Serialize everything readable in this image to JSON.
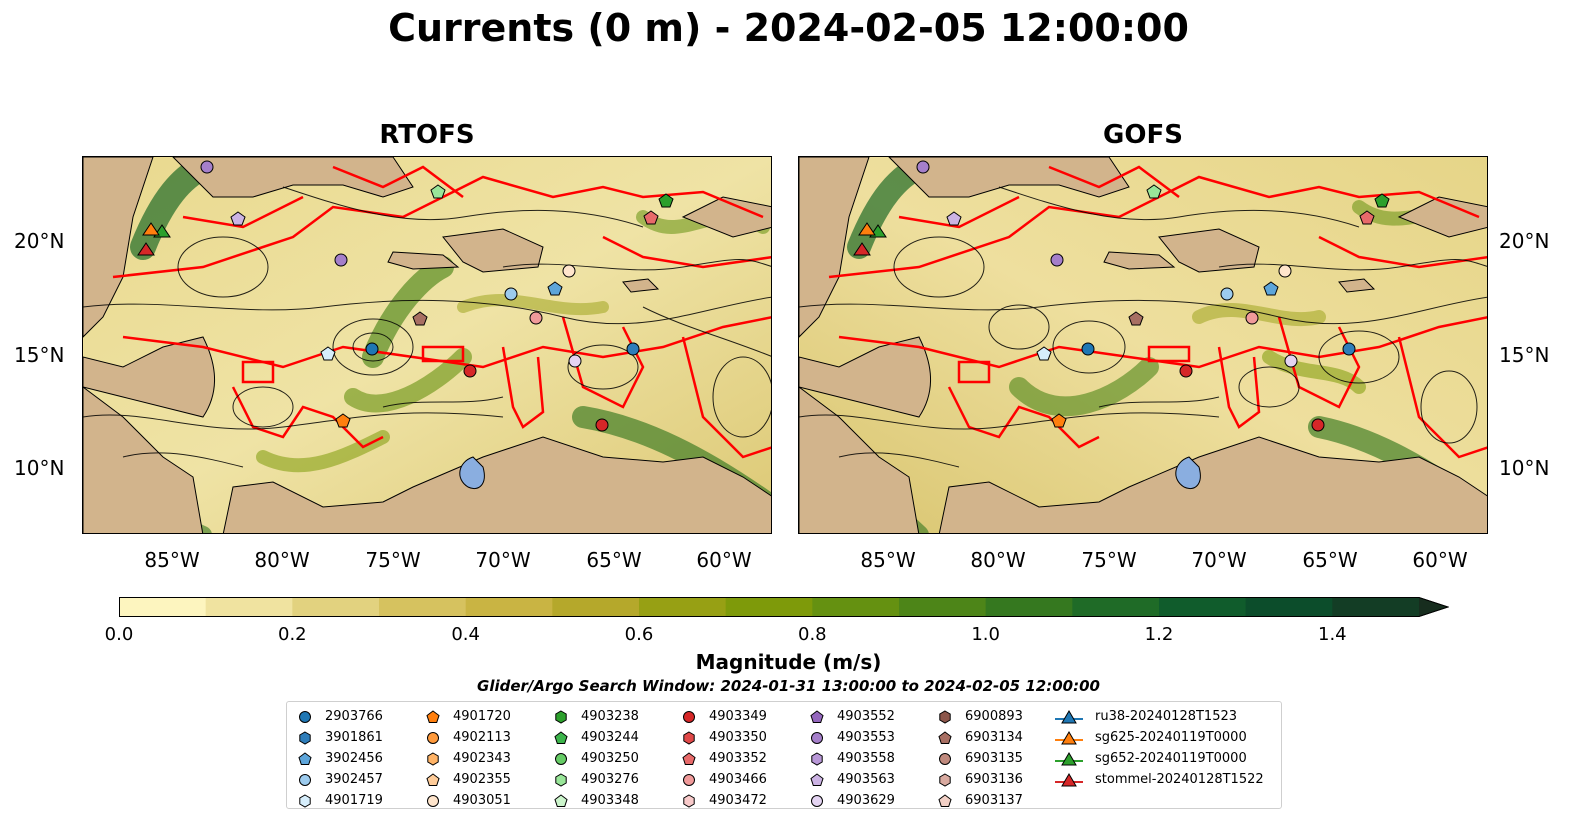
{
  "title": "Currents (0 m) - 2024-02-05 12:00:00",
  "panels": [
    {
      "title": "RTOFS"
    },
    {
      "title": "GOFS"
    }
  ],
  "axes": {
    "lat_labels": [
      "20°N",
      "15°N",
      "10°N"
    ],
    "lon_labels": [
      "85°W",
      "80°W",
      "75°W",
      "70°W",
      "65°W",
      "60°W"
    ]
  },
  "colorbar": {
    "label": "Magnitude (m/s)",
    "ticks": [
      "0.0",
      "0.2",
      "0.4",
      "0.6",
      "0.8",
      "1.0",
      "1.2",
      "1.4"
    ],
    "min": 0.0,
    "max": 1.5,
    "step": 0.1,
    "extend": "max",
    "colors": [
      "#fdf5bf",
      "#f0e3a0",
      "#e2d27f",
      "#d6c25f",
      "#c9b443",
      "#b5a82b",
      "#97a014",
      "#7e9a0a",
      "#659111",
      "#4d8518",
      "#35781f",
      "#1f6b27",
      "#105c2c",
      "#0c4d2b",
      "#133d25",
      "#172d1e"
    ]
  },
  "search_window": "Glider/Argo Search Window: 2024-01-31 13:00:00 to 2024-02-05 12:00:00",
  "colors": {
    "land": "#d2b48c",
    "lake": "#8aaee0",
    "eez_lines": "#ff0000",
    "streamlines": "#000000"
  },
  "legend": {
    "columns": [
      [
        {
          "label": "2903766",
          "marker": "circle",
          "color": "#1f77b4"
        },
        {
          "label": "3901861",
          "marker": "hexagon",
          "color": "#2e7dba"
        },
        {
          "label": "3902456",
          "marker": "pentagon",
          "color": "#5da5da"
        },
        {
          "label": "3902457",
          "marker": "circle",
          "color": "#9ccbee"
        },
        {
          "label": "4901719",
          "marker": "hexagon",
          "color": "#d6eefc"
        }
      ],
      [
        {
          "label": "4901720",
          "marker": "pentagon",
          "color": "#ff7f0e"
        },
        {
          "label": "4902113",
          "marker": "circle",
          "color": "#ff9a3c"
        },
        {
          "label": "4902343",
          "marker": "hexagon",
          "color": "#ffb366"
        },
        {
          "label": "4902355",
          "marker": "pentagon",
          "color": "#ffcc99"
        },
        {
          "label": "4903051",
          "marker": "circle",
          "color": "#ffe5cc"
        }
      ],
      [
        {
          "label": "4903238",
          "marker": "hexagon",
          "color": "#2ca02c"
        },
        {
          "label": "4903244",
          "marker": "pentagon",
          "color": "#3cb44b"
        },
        {
          "label": "4903250",
          "marker": "circle",
          "color": "#66cc66"
        },
        {
          "label": "4903276",
          "marker": "hexagon",
          "color": "#99e699"
        },
        {
          "label": "4903348",
          "marker": "pentagon",
          "color": "#ccf5cc"
        }
      ],
      [
        {
          "label": "4903349",
          "marker": "circle",
          "color": "#d62728"
        },
        {
          "label": "4903350",
          "marker": "hexagon",
          "color": "#e04848"
        },
        {
          "label": "4903352",
          "marker": "pentagon",
          "color": "#e86a6a"
        },
        {
          "label": "4903466",
          "marker": "circle",
          "color": "#f09a9a"
        },
        {
          "label": "4903472",
          "marker": "hexagon",
          "color": "#f8caca"
        }
      ],
      [
        {
          "label": "4903552",
          "marker": "pentagon",
          "color": "#9467bd"
        },
        {
          "label": "4903553",
          "marker": "circle",
          "color": "#a57fca"
        },
        {
          "label": "4903558",
          "marker": "hexagon",
          "color": "#b897d7"
        },
        {
          "label": "4903563",
          "marker": "pentagon",
          "color": "#ccb3e4"
        },
        {
          "label": "4903629",
          "marker": "circle",
          "color": "#e4d4f2"
        }
      ],
      [
        {
          "label": "6900893",
          "marker": "hexagon",
          "color": "#8c564b"
        },
        {
          "label": "6903134",
          "marker": "pentagon",
          "color": "#a86f63"
        },
        {
          "label": "6903135",
          "marker": "circle",
          "color": "#c08a7e"
        },
        {
          "label": "6903136",
          "marker": "hexagon",
          "color": "#d9aaa0"
        },
        {
          "label": "6903137",
          "marker": "pentagon",
          "color": "#f2d0c6"
        }
      ],
      [
        {
          "label": "ru38-20240128T1523",
          "marker": "triangle-line",
          "color": "#1f77b4"
        },
        {
          "label": "sg625-20240119T0000",
          "marker": "triangle-line",
          "color": "#ff7f0e"
        },
        {
          "label": "sg652-20240119T0000",
          "marker": "triangle-line",
          "color": "#2ca02c"
        },
        {
          "label": "stommel-20240128T1522",
          "marker": "triangle-line",
          "color": "#d62728"
        }
      ]
    ]
  }
}
